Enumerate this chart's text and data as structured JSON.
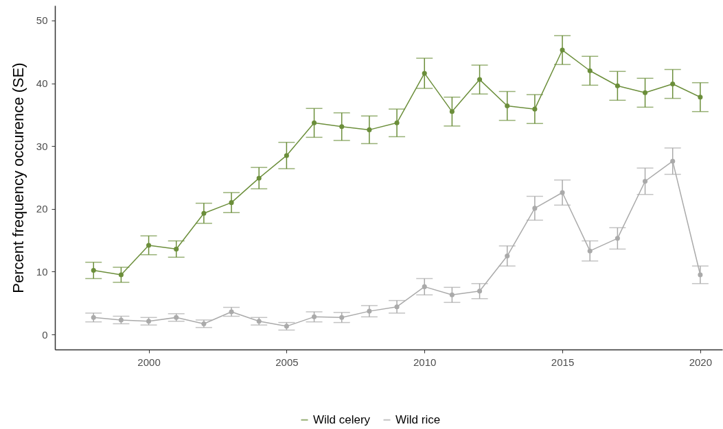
{
  "chart_data": {
    "type": "line",
    "ylabel": "Percent frequency occurence (SE)",
    "x": [
      1998,
      1999,
      2000,
      2001,
      2002,
      2003,
      2004,
      2005,
      2006,
      2007,
      2008,
      2009,
      2010,
      2011,
      2012,
      2013,
      2014,
      2015,
      2016,
      2017,
      2018,
      2019,
      2020
    ],
    "series": [
      {
        "name": "Wild celery",
        "color": "#6b8e3a",
        "values": [
          10.2,
          9.5,
          14.2,
          13.6,
          19.3,
          21.0,
          24.9,
          28.5,
          33.7,
          33.1,
          32.6,
          33.7,
          41.6,
          35.5,
          40.6,
          36.4,
          35.9,
          45.3,
          42.0,
          39.6,
          38.5,
          39.9,
          37.8
        ],
        "errors": [
          1.3,
          1.2,
          1.5,
          1.3,
          1.6,
          1.6,
          1.7,
          2.1,
          2.3,
          2.2,
          2.2,
          2.2,
          2.4,
          2.3,
          2.3,
          2.3,
          2.3,
          2.3,
          2.3,
          2.3,
          2.3,
          2.3,
          2.3
        ]
      },
      {
        "name": "Wild rice",
        "color": "#aaaaaa",
        "values": [
          2.7,
          2.3,
          2.1,
          2.7,
          1.7,
          3.6,
          2.1,
          1.3,
          2.8,
          2.7,
          3.7,
          4.4,
          7.6,
          6.3,
          6.9,
          12.5,
          20.1,
          22.6,
          13.3,
          15.3,
          24.4,
          27.6,
          9.5
        ],
        "errors": [
          0.7,
          0.6,
          0.6,
          0.6,
          0.6,
          0.7,
          0.6,
          0.6,
          0.8,
          0.8,
          0.9,
          1.0,
          1.3,
          1.2,
          1.2,
          1.6,
          1.9,
          2.0,
          1.6,
          1.7,
          2.1,
          2.1,
          1.4
        ]
      }
    ],
    "xlim": [
      1996.6,
      2020.8
    ],
    "xticks": [
      2000,
      2005,
      2010,
      2015,
      2020
    ],
    "ylim": [
      -2.4,
      52.4
    ],
    "yticks": [
      0,
      10,
      20,
      30,
      40,
      50
    ],
    "grid": false,
    "legend": "bottom",
    "marker": "circle",
    "line_style": "solid"
  }
}
